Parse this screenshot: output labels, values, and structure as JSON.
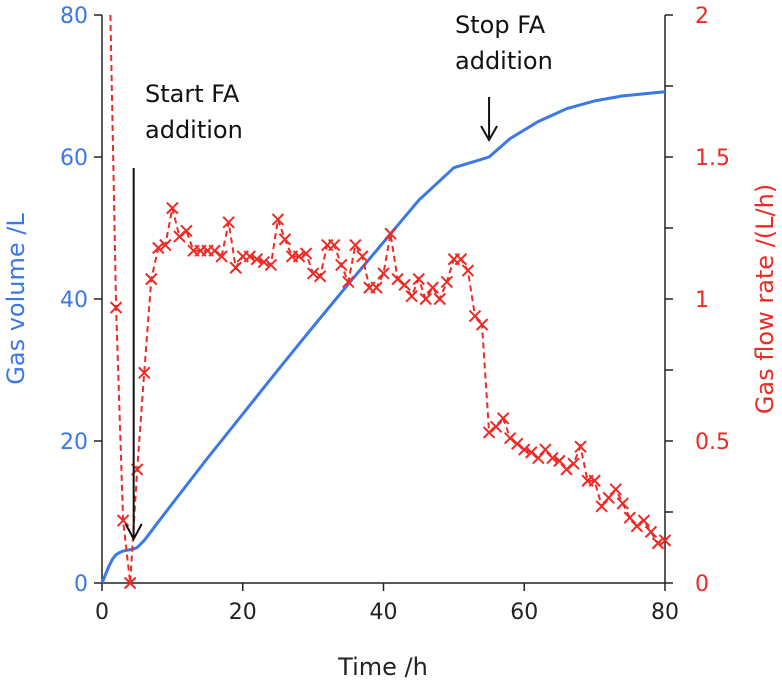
{
  "chart_data": {
    "type": "line",
    "title": "",
    "xlabel": "Time /h",
    "ylabel": "Gas volume /L",
    "y2label": "Gas flow rate /(L/h)",
    "xlim": [
      0,
      80
    ],
    "ylim": [
      0,
      80
    ],
    "y2lim": [
      0,
      2
    ],
    "x_ticks": [
      0,
      20,
      40,
      60,
      80
    ],
    "y_ticks": [
      0,
      20,
      40,
      60,
      80
    ],
    "y2_ticks": [
      0,
      0.5,
      1,
      1.5,
      2
    ],
    "grid": false,
    "legend": "none",
    "colors": {
      "volume": "#3b78e7",
      "flow": "#ee2a24",
      "annotation": "#111111"
    },
    "series": [
      {
        "axis": "left",
        "style": "solid line",
        "x": [
          0,
          0.5,
          1,
          1.5,
          2,
          2.5,
          3,
          3.5,
          4,
          4.5,
          5,
          6,
          7,
          8,
          10,
          15,
          20,
          25,
          30,
          35,
          40,
          45,
          50,
          55,
          58,
          62,
          66,
          70,
          74,
          78,
          80
        ],
        "values": [
          0,
          1.2,
          2.4,
          3.4,
          4.0,
          4.3,
          4.5,
          4.6,
          4.7,
          4.8,
          5.0,
          6.0,
          7.3,
          8.6,
          11.2,
          17.6,
          23.8,
          30.0,
          36.1,
          42.1,
          48.0,
          53.9,
          58.5,
          60.0,
          62.6,
          65.0,
          66.8,
          67.9,
          68.6,
          69.0,
          69.2
        ]
      },
      {
        "axis": "right",
        "style": "dashed line with x markers",
        "x": [
          1.2,
          2,
          3,
          4,
          5,
          6,
          7,
          8,
          9,
          10,
          11,
          12,
          13,
          14,
          15,
          16,
          17,
          18,
          19,
          20,
          21,
          22,
          23,
          24,
          25,
          26,
          27,
          28,
          29,
          30,
          31,
          32,
          33,
          34,
          35,
          36,
          37,
          38,
          39,
          40,
          41,
          42,
          43,
          44,
          45,
          46,
          47,
          48,
          49,
          50,
          51,
          52,
          53,
          54,
          55,
          56,
          57,
          58,
          59,
          60,
          61,
          62,
          63,
          64,
          65,
          66,
          67,
          68,
          69,
          70,
          71,
          72,
          73,
          74,
          75,
          76,
          77,
          78,
          79,
          80
        ],
        "values": [
          2.0,
          0.97,
          0.22,
          0,
          0.4,
          0.74,
          1.07,
          1.18,
          1.19,
          1.32,
          1.22,
          1.24,
          1.17,
          1.17,
          1.17,
          1.17,
          1.15,
          1.27,
          1.11,
          1.15,
          1.15,
          1.14,
          1.13,
          1.12,
          1.28,
          1.21,
          1.15,
          1.15,
          1.16,
          1.09,
          1.08,
          1.19,
          1.19,
          1.12,
          1.06,
          1.19,
          1.15,
          1.04,
          1.04,
          1.09,
          1.23,
          1.07,
          1.05,
          1.01,
          1.07,
          1.0,
          1.04,
          1.0,
          1.06,
          1.14,
          1.14,
          1.1,
          0.94,
          0.91,
          0.53,
          0.55,
          0.58,
          0.51,
          0.49,
          0.47,
          0.46,
          0.44,
          0.47,
          0.44,
          0.43,
          0.4,
          0.42,
          0.48,
          0.36,
          0.36,
          0.27,
          0.3,
          0.33,
          0.28,
          0.23,
          0.2,
          0.22,
          0.18,
          0.14,
          0.15
        ]
      }
    ],
    "annotations": [
      {
        "lines": [
          "Start FA",
          "addition"
        ],
        "arrow_x": 4.5
      },
      {
        "lines": [
          "Stop FA",
          "addition"
        ],
        "arrow_x": 55
      }
    ]
  }
}
